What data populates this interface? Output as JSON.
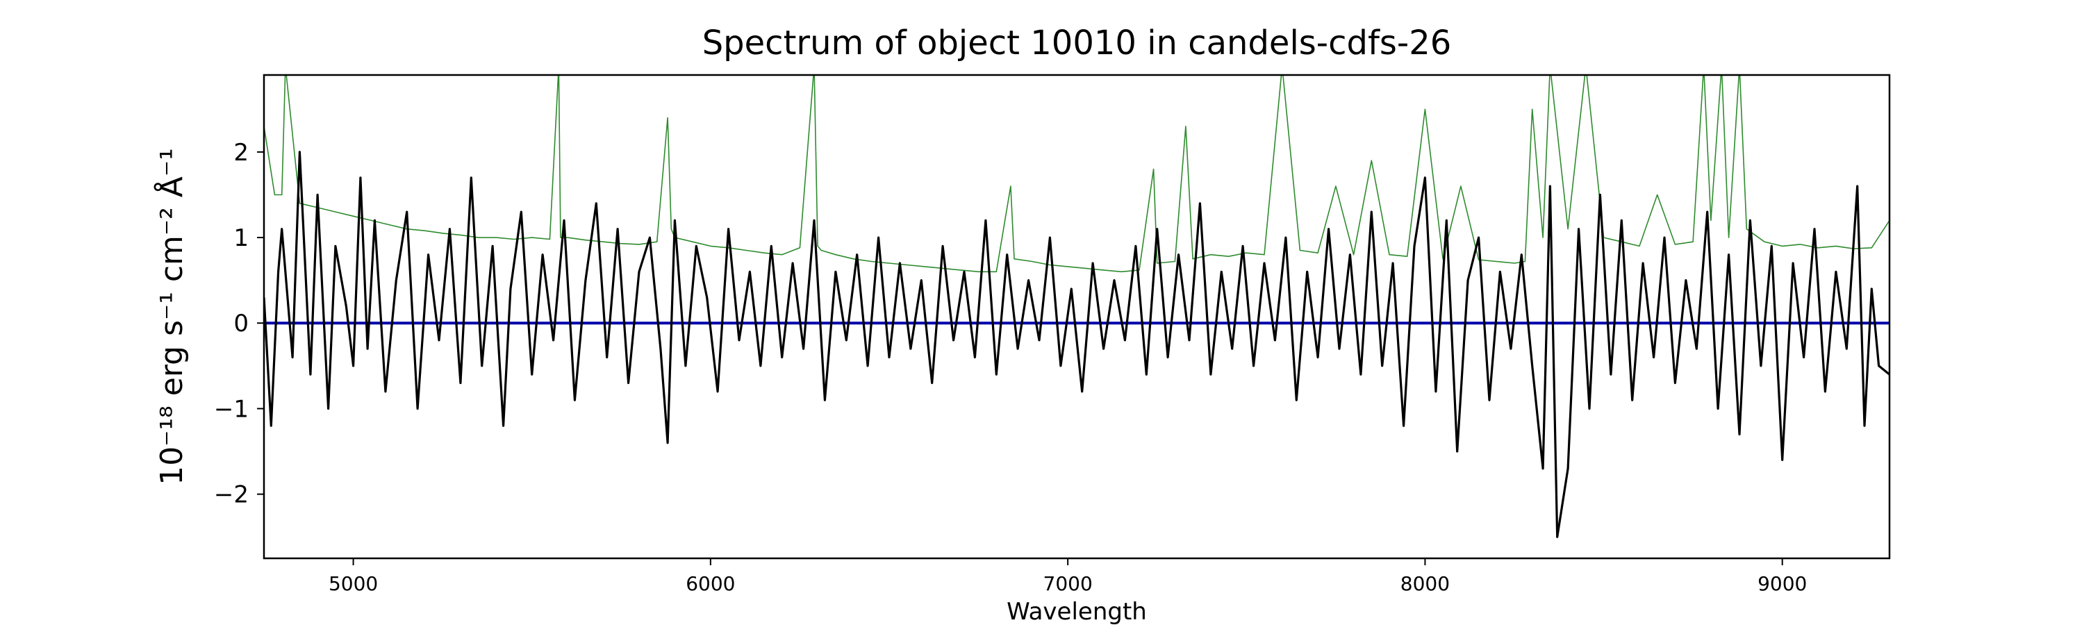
{
  "chart_data": {
    "type": "line",
    "title": "Spectrum of object 10010 in candels-cdfs-26",
    "xlabel": "Wavelength",
    "ylabel": "10⁻¹⁸ erg s⁻¹ cm⁻² Å⁻¹",
    "xlim": [
      4750,
      9300
    ],
    "ylim": [
      -2.75,
      2.9
    ],
    "xticks": [
      5000,
      6000,
      7000,
      8000,
      9000
    ],
    "yticks": [
      -2,
      -1,
      0,
      1,
      2
    ],
    "grid": false,
    "colors": {
      "flux": "#000000",
      "error": "#2e8b2e",
      "zero": "#0000aa"
    },
    "series": [
      {
        "role": "flux",
        "color": "#000000",
        "x": [
          4750,
          4770,
          4790,
          4800,
          4830,
          4850,
          4880,
          4900,
          4930,
          4950,
          4980,
          5000,
          5020,
          5040,
          5060,
          5090,
          5120,
          5150,
          5180,
          5210,
          5240,
          5270,
          5300,
          5330,
          5360,
          5390,
          5420,
          5440,
          5470,
          5500,
          5530,
          5560,
          5590,
          5620,
          5650,
          5680,
          5710,
          5740,
          5770,
          5800,
          5830,
          5860,
          5880,
          5900,
          5930,
          5960,
          5990,
          6020,
          6050,
          6080,
          6110,
          6140,
          6170,
          6200,
          6230,
          6260,
          6290,
          6320,
          6350,
          6380,
          6410,
          6440,
          6470,
          6500,
          6530,
          6560,
          6590,
          6620,
          6650,
          6680,
          6710,
          6740,
          6770,
          6800,
          6830,
          6860,
          6890,
          6920,
          6950,
          6980,
          7010,
          7040,
          7070,
          7100,
          7130,
          7160,
          7190,
          7220,
          7250,
          7280,
          7310,
          7340,
          7370,
          7400,
          7430,
          7460,
          7490,
          7520,
          7550,
          7580,
          7610,
          7640,
          7670,
          7700,
          7730,
          7760,
          7790,
          7820,
          7850,
          7880,
          7910,
          7940,
          7970,
          8000,
          8030,
          8060,
          8090,
          8120,
          8150,
          8180,
          8210,
          8240,
          8270,
          8300,
          8330,
          8350,
          8370,
          8400,
          8430,
          8460,
          8490,
          8520,
          8550,
          8580,
          8610,
          8640,
          8670,
          8700,
          8730,
          8760,
          8790,
          8820,
          8850,
          8880,
          8910,
          8940,
          8970,
          9000,
          9030,
          9060,
          9090,
          9120,
          9150,
          9180,
          9210,
          9230,
          9250,
          9270,
          9300
        ],
        "y": [
          0.3,
          -1.2,
          0.6,
          1.1,
          -0.4,
          2.0,
          -0.6,
          1.5,
          -1.0,
          0.9,
          0.2,
          -0.5,
          1.7,
          -0.3,
          1.2,
          -0.8,
          0.5,
          1.3,
          -1.0,
          0.8,
          -0.2,
          1.1,
          -0.7,
          1.7,
          -0.5,
          0.9,
          -1.2,
          0.4,
          1.3,
          -0.6,
          0.8,
          -0.2,
          1.2,
          -0.9,
          0.5,
          1.4,
          -0.4,
          1.1,
          -0.7,
          0.6,
          1.0,
          -0.3,
          -1.4,
          1.2,
          -0.5,
          0.9,
          0.3,
          -0.8,
          1.1,
          -0.2,
          0.6,
          -0.5,
          0.9,
          -0.4,
          0.7,
          -0.3,
          1.2,
          -0.9,
          0.6,
          -0.2,
          0.8,
          -0.5,
          1.0,
          -0.4,
          0.7,
          -0.3,
          0.5,
          -0.7,
          0.9,
          -0.2,
          0.6,
          -0.4,
          1.2,
          -0.6,
          0.8,
          -0.3,
          0.5,
          -0.2,
          1.0,
          -0.5,
          0.4,
          -0.8,
          0.7,
          -0.3,
          0.5,
          -0.2,
          0.9,
          -0.6,
          1.1,
          -0.4,
          0.8,
          -0.2,
          1.4,
          -0.6,
          0.6,
          -0.3,
          0.9,
          -0.5,
          0.7,
          -0.2,
          1.0,
          -0.9,
          0.6,
          -0.4,
          1.1,
          -0.3,
          0.8,
          -0.6,
          1.3,
          -0.5,
          0.7,
          -1.2,
          0.9,
          1.7,
          -0.8,
          1.2,
          -1.5,
          0.5,
          1.0,
          -0.9,
          0.6,
          -0.3,
          0.8,
          -0.5,
          -1.7,
          1.6,
          -2.5,
          -1.7,
          1.1,
          -1.0,
          1.5,
          -0.6,
          1.2,
          -0.9,
          0.7,
          -0.4,
          1.0,
          -0.7,
          0.5,
          -0.3,
          1.3,
          -1.0,
          0.8,
          -1.3,
          1.2,
          -0.5,
          0.9,
          -1.6,
          0.7,
          -0.4,
          1.1,
          -0.8,
          0.6,
          -0.3,
          1.6,
          -1.2,
          0.4,
          -0.5,
          -0.6
        ]
      },
      {
        "role": "error",
        "color": "#2e8b2e",
        "x": [
          4750,
          4780,
          4800,
          4810,
          4850,
          4900,
          4950,
          5000,
          5050,
          5100,
          5150,
          5200,
          5250,
          5300,
          5350,
          5400,
          5450,
          5500,
          5550,
          5575,
          5580,
          5600,
          5650,
          5700,
          5750,
          5800,
          5850,
          5880,
          5890,
          5900,
          5950,
          6000,
          6050,
          6100,
          6150,
          6200,
          6250,
          6290,
          6300,
          6310,
          6350,
          6400,
          6450,
          6500,
          6550,
          6600,
          6650,
          6700,
          6750,
          6800,
          6840,
          6850,
          6900,
          6950,
          7000,
          7050,
          7100,
          7150,
          7200,
          7240,
          7250,
          7300,
          7330,
          7350,
          7400,
          7450,
          7500,
          7550,
          7600,
          7650,
          7700,
          7750,
          7800,
          7850,
          7900,
          7950,
          8000,
          8050,
          8100,
          8150,
          8200,
          8250,
          8280,
          8300,
          8330,
          8350,
          8400,
          8450,
          8500,
          8550,
          8600,
          8650,
          8700,
          8750,
          8780,
          8800,
          8830,
          8850,
          8880,
          8900,
          8950,
          9000,
          9050,
          9100,
          9150,
          9200,
          9250,
          9300
        ],
        "y": [
          2.3,
          1.5,
          1.5,
          3.0,
          1.4,
          1.35,
          1.3,
          1.25,
          1.2,
          1.15,
          1.1,
          1.08,
          1.05,
          1.03,
          1.0,
          1.0,
          0.98,
          1.0,
          0.98,
          3.0,
          1.0,
          1.0,
          0.97,
          0.95,
          0.93,
          0.92,
          0.95,
          2.4,
          1.1,
          1.0,
          0.95,
          0.9,
          0.88,
          0.85,
          0.82,
          0.8,
          0.88,
          3.0,
          0.9,
          0.85,
          0.8,
          0.75,
          0.72,
          0.7,
          0.68,
          0.66,
          0.64,
          0.62,
          0.6,
          0.6,
          1.6,
          0.75,
          0.72,
          0.68,
          0.66,
          0.64,
          0.62,
          0.6,
          0.62,
          1.8,
          0.7,
          0.72,
          2.3,
          0.75,
          0.8,
          0.78,
          0.82,
          0.8,
          3.0,
          0.85,
          0.82,
          1.6,
          0.8,
          1.9,
          0.8,
          0.78,
          2.5,
          0.75,
          1.6,
          0.74,
          0.72,
          0.7,
          0.72,
          2.5,
          1.0,
          3.0,
          1.1,
          3.0,
          1.0,
          0.95,
          0.9,
          1.5,
          0.92,
          0.95,
          3.0,
          1.2,
          3.0,
          1.0,
          3.0,
          1.1,
          0.95,
          0.9,
          0.92,
          0.88,
          0.9,
          0.87,
          0.88,
          1.2
        ]
      },
      {
        "role": "zero",
        "color": "#0000aa",
        "x": [
          4750,
          9300
        ],
        "y": [
          0,
          0
        ]
      }
    ]
  }
}
